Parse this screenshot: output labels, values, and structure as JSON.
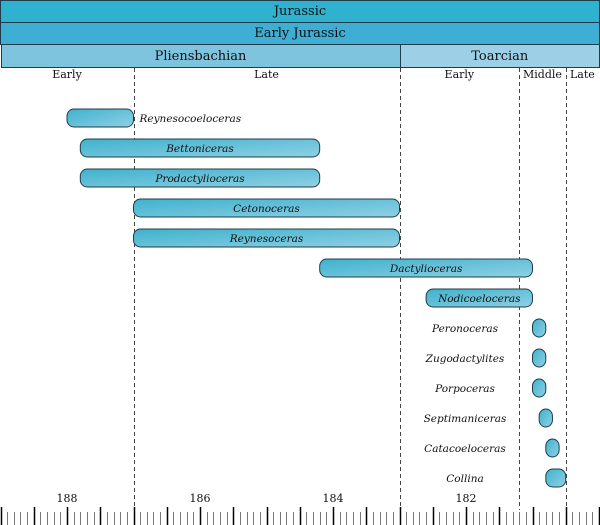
{
  "period": {
    "label": "Jurassic",
    "color": "#2fb2cf"
  },
  "epoch": {
    "label": "Early Jurassic",
    "color": "#3eaed5"
  },
  "stages": [
    {
      "label": "Pliensbachian",
      "start": 189.0,
      "end": 183.0,
      "color": "#7ec4df"
    },
    {
      "label": "Toarcian",
      "start": 183.0,
      "end": 180.0,
      "color": "#9dd0e6"
    }
  ],
  "substages": [
    {
      "label": "Early",
      "start": 189.0,
      "end": 187.0
    },
    {
      "label": "Late",
      "start": 187.0,
      "end": 183.0
    },
    {
      "label": "Early",
      "start": 183.0,
      "end": 181.2
    },
    {
      "label": "Middle",
      "start": 181.2,
      "end": 180.5
    },
    {
      "label": "Late",
      "start": 180.5,
      "end": 180.0
    }
  ],
  "axis": {
    "min": 189.0,
    "max": 180.0,
    "tick_labels": [
      "188",
      "186",
      "184",
      "182"
    ],
    "major_step": 0.5,
    "minor_step": 0.1
  },
  "bar_colors": [
    "#3fb2cd",
    "#8fd0e4"
  ],
  "taxa": [
    {
      "name": "Reynesocoeloceras",
      "start": 188.0,
      "end": 187.0
    },
    {
      "name": "Bettoniceras",
      "start": 187.8,
      "end": 184.2
    },
    {
      "name": "Prodactylioceras",
      "start": 187.8,
      "end": 184.2
    },
    {
      "name": "Cetonoceras",
      "start": 187.0,
      "end": 183.0
    },
    {
      "name": "Reynesoceras",
      "start": 187.0,
      "end": 183.0
    },
    {
      "name": "Dactylioceras",
      "start": 184.2,
      "end": 181.0
    },
    {
      "name": "Nodicoeloceras",
      "start": 182.6,
      "end": 181.0
    },
    {
      "name": "Peronoceras",
      "start": 181.0,
      "end": 180.8
    },
    {
      "name": "Zugodactylites",
      "start": 181.0,
      "end": 180.8
    },
    {
      "name": "Porpoceras",
      "start": 181.0,
      "end": 180.8
    },
    {
      "name": "Septimaniceras",
      "start": 180.9,
      "end": 180.7
    },
    {
      "name": "Catacoeloceras",
      "start": 180.8,
      "end": 180.6
    },
    {
      "name": "Collina",
      "start": 180.8,
      "end": 180.5
    }
  ]
}
